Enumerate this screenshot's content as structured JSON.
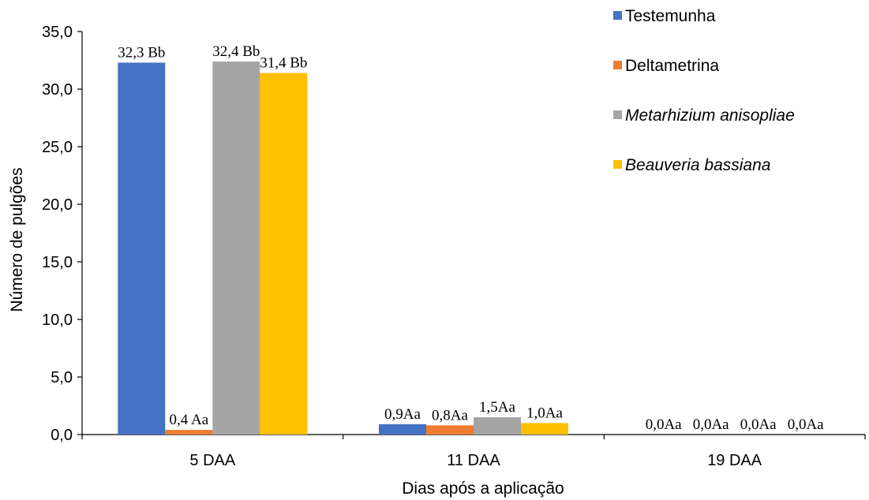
{
  "chart_data": {
    "type": "bar",
    "categories": [
      "5 DAA",
      "11 DAA",
      "19 DAA"
    ],
    "series": [
      {
        "name": "Testemunha",
        "italic": false,
        "color": "#4472C4",
        "values": [
          32.3,
          0.9,
          0.0
        ],
        "labels": [
          "32,3 Bb",
          "0,9Aa",
          "0,0Aa"
        ]
      },
      {
        "name": "Deltametrina",
        "italic": false,
        "color": "#ED7D31",
        "values": [
          0.4,
          0.8,
          0.0
        ],
        "labels": [
          "0,4 Aa",
          "0,8Aa",
          "0,0Aa"
        ]
      },
      {
        "name": "Metarhizium anisopliae",
        "italic": true,
        "color": "#A5A5A5",
        "values": [
          32.4,
          1.5,
          0.0
        ],
        "labels": [
          "32,4 Bb",
          "1,5Aa",
          "0,0Aa"
        ]
      },
      {
        "name": "Beauveria bassiana",
        "italic": true,
        "color": "#FFC000",
        "values": [
          31.4,
          1.0,
          0.0
        ],
        "labels": [
          "31,4 Bb",
          "1,0Aa",
          "0,0Aa"
        ]
      }
    ],
    "xlabel": "Dias após a aplicação",
    "ylabel": "Número de pulgões",
    "ylim": [
      0,
      35
    ],
    "yticks": [
      "0,0",
      "5,0",
      "10,0",
      "15,0",
      "20,0",
      "25,0",
      "30,0",
      "35,0"
    ],
    "grid": false,
    "legend_position": "top-right"
  }
}
